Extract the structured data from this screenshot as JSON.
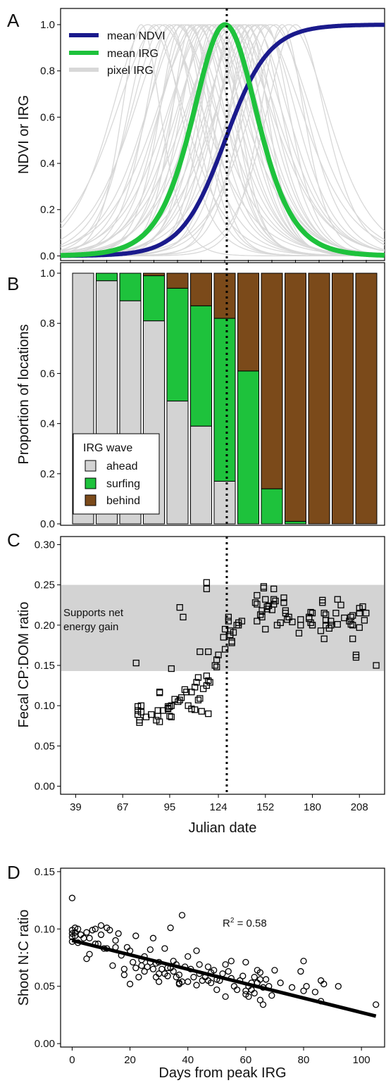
{
  "chart_data": [
    {
      "panel": "A",
      "type": "line",
      "ylabel": "NDVI or IRG",
      "ylim": [
        -0.02,
        1.07
      ],
      "xlim": [
        30,
        223
      ],
      "y_ticks": [
        "0.0",
        "0.2",
        "0.4",
        "0.6",
        "0.8",
        "1.0"
      ],
      "legend": {
        "position": "top-left",
        "entries": [
          "mean NDVI",
          "mean IRG",
          "pixel IRG"
        ]
      },
      "colors": {
        "ndvi": "#1a1a8c",
        "irg": "#1ec23c",
        "pixel": "#d8d8d8"
      },
      "ndvi_curve": {
        "inflection_day": 128,
        "scale_days": 13
      },
      "irg_curve": {
        "peak_day": 128,
        "scale_days": 13
      },
      "pixel_irg_peaks": [
        78,
        82,
        86,
        89,
        92,
        95,
        98,
        100,
        102,
        104,
        106,
        108,
        110,
        112,
        113,
        115,
        116,
        118,
        119,
        121,
        122,
        124,
        125,
        127,
        128,
        130,
        131,
        133,
        134,
        136,
        137,
        139,
        140,
        142,
        144,
        146,
        148,
        150,
        152,
        155,
        158,
        162,
        166,
        170
      ],
      "vline_day": 129
    },
    {
      "panel": "B",
      "type": "bar",
      "stacked": true,
      "ylabel": "Proportion of locations",
      "ylim": [
        0,
        1
      ],
      "y_ticks": [
        "0.0",
        "0.2",
        "0.4",
        "0.6",
        "0.8",
        "1.0"
      ],
      "legend": {
        "title": "IRG wave",
        "position": "bottom-left",
        "entries": [
          "ahead",
          "surfing",
          "behind"
        ]
      },
      "colors": {
        "ahead": "#d3d3d3",
        "surfing": "#1ec23c",
        "behind": "#7b4a1a"
      },
      "series": [
        {
          "name": "ahead",
          "values": [
            1.0,
            0.97,
            0.89,
            0.81,
            0.49,
            0.39,
            0.17,
            0.0,
            0.0,
            0.0,
            0.0,
            0.0,
            0.0
          ]
        },
        {
          "name": "surfing",
          "values": [
            0.0,
            0.03,
            0.11,
            0.18,
            0.45,
            0.48,
            0.65,
            0.61,
            0.14,
            0.01,
            0.0,
            0.0,
            0.0
          ]
        },
        {
          "name": "behind",
          "values": [
            0.0,
            0.0,
            0.0,
            0.01,
            0.06,
            0.13,
            0.18,
            0.39,
            0.86,
            0.99,
            1.0,
            1.0,
            1.0
          ]
        }
      ],
      "vline_day": 129
    },
    {
      "panel": "C",
      "type": "scatter",
      "ylabel": "Fecal CP:DOM ratio",
      "xlabel": "Julian date",
      "ylim": [
        -0.01,
        0.31
      ],
      "xlim": [
        30,
        223
      ],
      "x_ticks": [
        39,
        67,
        95,
        124,
        152,
        180,
        208
      ],
      "y_ticks": [
        "0.00",
        "0.05",
        "0.10",
        "0.15",
        "0.20",
        "0.25",
        "0.30"
      ],
      "band": {
        "from": 0.143,
        "to": 0.25,
        "label_line1": "Supports net",
        "label_line2": "energy gain"
      },
      "vline_day": 129,
      "points": [
        [
          75,
          0.153
        ],
        [
          76,
          0.099
        ],
        [
          76,
          0.094
        ],
        [
          76,
          0.089
        ],
        [
          77,
          0.082
        ],
        [
          77,
          0.079
        ],
        [
          78,
          0.092
        ],
        [
          78,
          0.1
        ],
        [
          81,
          0.086
        ],
        [
          84,
          0.089
        ],
        [
          87,
          0.082
        ],
        [
          88,
          0.087
        ],
        [
          88,
          0.094
        ],
        [
          89,
          0.116
        ],
        [
          89,
          0.117
        ],
        [
          89,
          0.08
        ],
        [
          91,
          0.094
        ],
        [
          94,
          0.097
        ],
        [
          94,
          0.096
        ],
        [
          94,
          0.099
        ],
        [
          95,
          0.087
        ],
        [
          95,
          0.099
        ],
        [
          96,
          0.086
        ],
        [
          96,
          0.146
        ],
        [
          96,
          0.1
        ],
        [
          98,
          0.108
        ],
        [
          100,
          0.105
        ],
        [
          101,
          0.107
        ],
        [
          101,
          0.222
        ],
        [
          102,
          0.11
        ],
        [
          103,
          0.21
        ],
        [
          104,
          0.12
        ],
        [
          105,
          0.117
        ],
        [
          106,
          0.1
        ],
        [
          108,
          0.117
        ],
        [
          108,
          0.096
        ],
        [
          110,
          0.123
        ],
        [
          110,
          0.095
        ],
        [
          111,
          0.129
        ],
        [
          112,
          0.107
        ],
        [
          112,
          0.135
        ],
        [
          113,
          0.167
        ],
        [
          113,
          0.109
        ],
        [
          114,
          0.093
        ],
        [
          115,
          0.121
        ],
        [
          117,
          0.125
        ],
        [
          117,
          0.137
        ],
        [
          117,
          0.245
        ],
        [
          117,
          0.253
        ],
        [
          118,
          0.09
        ],
        [
          118,
          0.131
        ],
        [
          118,
          0.167
        ],
        [
          119,
          0.129
        ],
        [
          122,
          0.15
        ],
        [
          123,
          0.148
        ],
        [
          123,
          0.157
        ],
        [
          124,
          0.163
        ],
        [
          127,
          0.185
        ],
        [
          128,
          0.17
        ],
        [
          128,
          0.195
        ],
        [
          130,
          0.205
        ],
        [
          130,
          0.21
        ],
        [
          131,
          0.188
        ],
        [
          131,
          0.193
        ],
        [
          132,
          0.18
        ],
        [
          132,
          0.178
        ],
        [
          133,
          0.191
        ],
        [
          135,
          0.2
        ],
        [
          136,
          0.203
        ],
        [
          136,
          0.2
        ],
        [
          138,
          0.205
        ],
        [
          146,
          0.228
        ],
        [
          147,
          0.237
        ],
        [
          147,
          0.205
        ],
        [
          147,
          0.226
        ],
        [
          149,
          0.213
        ],
        [
          150,
          0.21
        ],
        [
          150,
          0.218
        ],
        [
          151,
          0.246
        ],
        [
          151,
          0.248
        ],
        [
          152,
          0.195
        ],
        [
          152,
          0.232
        ],
        [
          153,
          0.22
        ],
        [
          153,
          0.223
        ],
        [
          154,
          0.224
        ],
        [
          156,
          0.219
        ],
        [
          157,
          0.245
        ],
        [
          157,
          0.226
        ],
        [
          157,
          0.232
        ],
        [
          158,
          0.23
        ],
        [
          159,
          0.2
        ],
        [
          161,
          0.203
        ],
        [
          163,
          0.234
        ],
        [
          163,
          0.228
        ],
        [
          164,
          0.218
        ],
        [
          164,
          0.215
        ],
        [
          165,
          0.207
        ],
        [
          166,
          0.21
        ],
        [
          168,
          0.204
        ],
        [
          172,
          0.19
        ],
        [
          173,
          0.207
        ],
        [
          173,
          0.2
        ],
        [
          178,
          0.21
        ],
        [
          178,
          0.208
        ],
        [
          179,
          0.216
        ],
        [
          179,
          0.203
        ],
        [
          180,
          0.2
        ],
        [
          180,
          0.2
        ],
        [
          180,
          0.215
        ],
        [
          185,
          0.193
        ],
        [
          186,
          0.228
        ],
        [
          186,
          0.231
        ],
        [
          187,
          0.215
        ],
        [
          187,
          0.183
        ],
        [
          188,
          0.2
        ],
        [
          188,
          0.213
        ],
        [
          188,
          0.206
        ],
        [
          190,
          0.196
        ],
        [
          191,
          0.205
        ],
        [
          191,
          0.2
        ],
        [
          194,
          0.215
        ],
        [
          195,
          0.201
        ],
        [
          195,
          0.232
        ],
        [
          197,
          0.225
        ],
        [
          199,
          0.209
        ],
        [
          202,
          0.205
        ],
        [
          203,
          0.21
        ],
        [
          203,
          0.201
        ],
        [
          204,
          0.2
        ],
        [
          204,
          0.183
        ],
        [
          204,
          0.212
        ],
        [
          206,
          0.16
        ],
        [
          206,
          0.163
        ],
        [
          208,
          0.215
        ],
        [
          208,
          0.221
        ],
        [
          208,
          0.197
        ],
        [
          210,
          0.223
        ],
        [
          211,
          0.206
        ],
        [
          212,
          0.215
        ],
        [
          218,
          0.15
        ]
      ]
    },
    {
      "panel": "D",
      "type": "scatter",
      "ylabel": "Shoot N:C ratio",
      "xlabel": "Days from peak IRG",
      "xlim": [
        -4,
        108
      ],
      "ylim": [
        -0.003,
        0.153
      ],
      "x_ticks": [
        0,
        20,
        40,
        60,
        80,
        100
      ],
      "y_ticks": [
        "0.00",
        "0.05",
        "0.10",
        "0.15"
      ],
      "annotation": {
        "base": "R",
        "sup": "2",
        "rest": " = 0.58",
        "at": [
          52,
          0.102
        ]
      },
      "fit": {
        "x": [
          0,
          105
        ],
        "y": [
          0.09,
          0.024
        ]
      },
      "points": [
        [
          0,
          0.127
        ],
        [
          0,
          0.099
        ],
        [
          0,
          0.096
        ],
        [
          0,
          0.093
        ],
        [
          0,
          0.089
        ],
        [
          1,
          0.101
        ],
        [
          1,
          0.097
        ],
        [
          1,
          0.094
        ],
        [
          2,
          0.1
        ],
        [
          2,
          0.088
        ],
        [
          3,
          0.095
        ],
        [
          4,
          0.092
        ],
        [
          5,
          0.097
        ],
        [
          5,
          0.074
        ],
        [
          6,
          0.092
        ],
        [
          6,
          0.078
        ],
        [
          7,
          0.099
        ],
        [
          8,
          0.1
        ],
        [
          8,
          0.087
        ],
        [
          9,
          0.087
        ],
        [
          10,
          0.095
        ],
        [
          10,
          0.103
        ],
        [
          11,
          0.083
        ],
        [
          12,
          0.101
        ],
        [
          12,
          0.083
        ],
        [
          13,
          0.099
        ],
        [
          14,
          0.068
        ],
        [
          15,
          0.084
        ],
        [
          15,
          0.09
        ],
        [
          16,
          0.096
        ],
        [
          17,
          0.077
        ],
        [
          18,
          0.06
        ],
        [
          18,
          0.065
        ],
        [
          19,
          0.084
        ],
        [
          20,
          0.081
        ],
        [
          20,
          0.052
        ],
        [
          21,
          0.071
        ],
        [
          22,
          0.066
        ],
        [
          22,
          0.094
        ],
        [
          23,
          0.058
        ],
        [
          24,
          0.068
        ],
        [
          24,
          0.073
        ],
        [
          25,
          0.063
        ],
        [
          25,
          0.076
        ],
        [
          26,
          0.067
        ],
        [
          27,
          0.082
        ],
        [
          27,
          0.071
        ],
        [
          28,
          0.092
        ],
        [
          28,
          0.065
        ],
        [
          29,
          0.07
        ],
        [
          29,
          0.058
        ],
        [
          30,
          0.061
        ],
        [
          30,
          0.071
        ],
        [
          30,
          0.054
        ],
        [
          31,
          0.065
        ],
        [
          32,
          0.083
        ],
        [
          32,
          0.061
        ],
        [
          33,
          0.066
        ],
        [
          33,
          0.059
        ],
        [
          34,
          0.101
        ],
        [
          34,
          0.066
        ],
        [
          35,
          0.072
        ],
        [
          35,
          0.063
        ],
        [
          36,
          0.058
        ],
        [
          36,
          0.069
        ],
        [
          37,
          0.052
        ],
        [
          37,
          0.053
        ],
        [
          37,
          0.06
        ],
        [
          38,
          0.112
        ],
        [
          38,
          0.054
        ],
        [
          39,
          0.067
        ],
        [
          40,
          0.076
        ],
        [
          40,
          0.054
        ],
        [
          41,
          0.065
        ],
        [
          42,
          0.058
        ],
        [
          43,
          0.051
        ],
        [
          43,
          0.081
        ],
        [
          44,
          0.069
        ],
        [
          44,
          0.061
        ],
        [
          45,
          0.055
        ],
        [
          46,
          0.058
        ],
        [
          47,
          0.055
        ],
        [
          47,
          0.067
        ],
        [
          48,
          0.062
        ],
        [
          48,
          0.053
        ],
        [
          49,
          0.064
        ],
        [
          50,
          0.056
        ],
        [
          50,
          0.047
        ],
        [
          51,
          0.055
        ],
        [
          52,
          0.061
        ],
        [
          53,
          0.069
        ],
        [
          53,
          0.041
        ],
        [
          54,
          0.063
        ],
        [
          55,
          0.057
        ],
        [
          55,
          0.072
        ],
        [
          56,
          0.05
        ],
        [
          57,
          0.047
        ],
        [
          58,
          0.055
        ],
        [
          59,
          0.059
        ],
        [
          60,
          0.046
        ],
        [
          60,
          0.043
        ],
        [
          60,
          0.071
        ],
        [
          61,
          0.05
        ],
        [
          61,
          0.041
        ],
        [
          62,
          0.053
        ],
        [
          62,
          0.047
        ],
        [
          63,
          0.044
        ],
        [
          63,
          0.058
        ],
        [
          64,
          0.064
        ],
        [
          64,
          0.053
        ],
        [
          65,
          0.062
        ],
        [
          65,
          0.056
        ],
        [
          65,
          0.038
        ],
        [
          66,
          0.034
        ],
        [
          66,
          0.049
        ],
        [
          67,
          0.056
        ],
        [
          68,
          0.05
        ],
        [
          69,
          0.042
        ],
        [
          70,
          0.064
        ],
        [
          72,
          0.053
        ],
        [
          76,
          0.049
        ],
        [
          79,
          0.063
        ],
        [
          80,
          0.072
        ],
        [
          80,
          0.046
        ],
        [
          81,
          0.05
        ],
        [
          84,
          0.045
        ],
        [
          86,
          0.055
        ],
        [
          86,
          0.037
        ],
        [
          87,
          0.052
        ],
        [
          92,
          0.05
        ],
        [
          105,
          0.034
        ]
      ]
    }
  ]
}
